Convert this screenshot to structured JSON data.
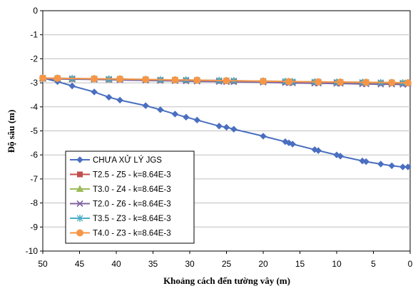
{
  "chart_data": {
    "type": "line",
    "xlabel": "Khoảng cách đến tường vây  (m)",
    "ylabel": "Độ sâu  (m)",
    "xlim": [
      50,
      0
    ],
    "ylim": [
      -10,
      0
    ],
    "x_ticks": [
      50,
      45,
      40,
      35,
      30,
      25,
      20,
      15,
      10,
      5,
      0
    ],
    "y_ticks": [
      0,
      -1,
      -2,
      -3,
      -4,
      -5,
      -6,
      -7,
      -8,
      -9,
      -10
    ],
    "grid": true,
    "legend_position": "bottom-left",
    "series": [
      {
        "name": "CHƯA XỬ LÝ JGS",
        "color": "#4a6fc0",
        "marker": "diamond",
        "x": [
          50,
          48,
          46,
          43,
          41,
          39.5,
          36,
          34,
          32,
          30.5,
          29,
          26,
          25,
          24,
          20,
          17,
          16.5,
          16,
          13,
          12.5,
          10,
          9.5,
          6.5,
          6,
          4,
          2.5,
          1,
          0.3
        ],
        "y": [
          -2.8,
          -2.95,
          -3.13,
          -3.38,
          -3.6,
          -3.72,
          -3.95,
          -4.12,
          -4.3,
          -4.43,
          -4.55,
          -4.8,
          -4.85,
          -4.93,
          -5.22,
          -5.45,
          -5.5,
          -5.55,
          -5.78,
          -5.82,
          -6.0,
          -6.05,
          -6.25,
          -6.28,
          -6.38,
          -6.45,
          -6.5,
          -6.5
        ]
      },
      {
        "name": "T2.5 - Z5 - k=8.64E-3",
        "color": "#c0504d",
        "marker": "square",
        "x": [
          50,
          48,
          46,
          43,
          41,
          39.5,
          36,
          34,
          32,
          30.5,
          29,
          26,
          25,
          24,
          20,
          17,
          16.5,
          16,
          13,
          12.5,
          10,
          9.5,
          6.5,
          6,
          4,
          2.5,
          1,
          0.3
        ],
        "y": [
          -2.82,
          -2.83,
          -2.84,
          -2.85,
          -2.86,
          -2.86,
          -2.88,
          -2.89,
          -2.9,
          -2.9,
          -2.91,
          -2.92,
          -2.93,
          -2.93,
          -2.95,
          -2.96,
          -2.97,
          -2.97,
          -2.98,
          -2.98,
          -2.99,
          -2.99,
          -3.0,
          -3.0,
          -3.01,
          -3.01,
          -3.02,
          -3.02
        ]
      },
      {
        "name": "T3.0 - Z4 - k=8.64E-3",
        "color": "#9bbb59",
        "marker": "triangle",
        "x": [
          50,
          48,
          46,
          43,
          41,
          39.5,
          36,
          34,
          32,
          30.5,
          29,
          26,
          25,
          24,
          20,
          17,
          16.5,
          16,
          13,
          12.5,
          10,
          9.5,
          6.5,
          6,
          4,
          2.5,
          1,
          0.3
        ],
        "y": [
          -2.81,
          -2.82,
          -2.83,
          -2.84,
          -2.85,
          -2.85,
          -2.87,
          -2.88,
          -2.89,
          -2.89,
          -2.9,
          -2.91,
          -2.92,
          -2.92,
          -2.94,
          -2.95,
          -2.96,
          -2.96,
          -2.97,
          -2.97,
          -2.98,
          -2.98,
          -2.99,
          -2.99,
          -3.0,
          -3.0,
          -3.01,
          -3.01
        ]
      },
      {
        "name": "T2.0 - Z6 - k=8.64E-3",
        "color": "#8064a2",
        "marker": "x",
        "x": [
          50,
          48,
          46,
          43,
          41,
          39.5,
          36,
          34,
          32,
          30.5,
          29,
          26,
          25,
          24,
          20,
          17,
          16.5,
          16,
          13,
          12.5,
          10,
          9.5,
          6.5,
          6,
          4,
          2.5,
          1,
          0.3
        ],
        "y": [
          -2.83,
          -2.84,
          -2.85,
          -2.86,
          -2.87,
          -2.88,
          -2.9,
          -2.91,
          -2.92,
          -2.93,
          -2.94,
          -2.95,
          -2.96,
          -2.96,
          -2.98,
          -3.0,
          -3.0,
          -3.01,
          -3.02,
          -3.02,
          -3.03,
          -3.03,
          -3.05,
          -3.05,
          -3.06,
          -3.06,
          -3.07,
          -3.07
        ]
      },
      {
        "name": "T3.5 - Z3 - k=8.64E-3",
        "color": "#4bacc6",
        "marker": "star",
        "x": [
          50,
          48,
          46,
          43,
          41,
          39.5,
          36,
          34,
          32,
          30.5,
          29,
          26,
          25,
          24,
          20,
          17,
          16.5,
          16,
          13,
          12.5,
          10,
          9.5,
          6.5,
          6,
          4,
          2.5,
          1,
          0.3
        ],
        "y": [
          -2.8,
          -2.81,
          -2.82,
          -2.83,
          -2.84,
          -2.84,
          -2.86,
          -2.87,
          -2.88,
          -2.88,
          -2.89,
          -2.9,
          -2.91,
          -2.91,
          -2.93,
          -2.94,
          -2.95,
          -2.95,
          -2.96,
          -2.96,
          -2.97,
          -2.97,
          -2.98,
          -2.98,
          -2.99,
          -2.99,
          -3.0,
          -3.0
        ]
      },
      {
        "name": "T4.0 - Z3 - k=8.64E-3",
        "color": "#f79646",
        "marker": "circle",
        "x": [
          50,
          48,
          43,
          39.5,
          36,
          32,
          29,
          25,
          20,
          16.5,
          12.5,
          9.5,
          6,
          2.5,
          0.3
        ],
        "y": [
          -2.8,
          -2.81,
          -2.83,
          -2.84,
          -2.86,
          -2.88,
          -2.89,
          -2.91,
          -2.93,
          -2.95,
          -2.96,
          -2.97,
          -2.98,
          -2.99,
          -3.0
        ]
      }
    ]
  }
}
